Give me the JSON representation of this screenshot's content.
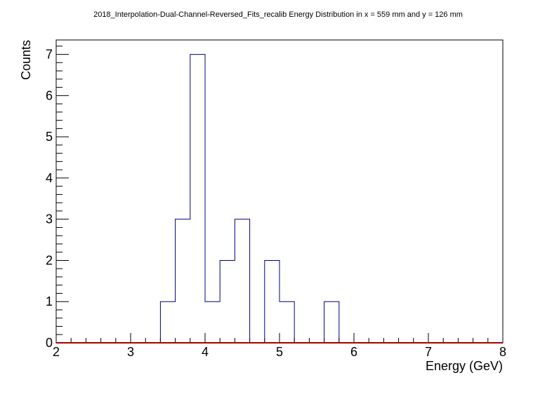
{
  "chart_data": {
    "type": "bar",
    "title": "2018_Interpolation-Dual-Channel-Reversed_Fits_recalib Energy Distribution in x = 559 mm and y = 126 mm",
    "xlabel": "Energy (GeV)",
    "ylabel": "Counts",
    "xlim": [
      2,
      8
    ],
    "ylim": [
      0,
      7.35
    ],
    "x_ticks": [
      "2",
      "3",
      "4",
      "5",
      "6",
      "7",
      "8"
    ],
    "y_ticks": [
      "0",
      "1",
      "2",
      "3",
      "4",
      "5",
      "6",
      "7"
    ],
    "bin_width": 0.2,
    "bin_edges_start": 2.0,
    "values": [
      0,
      0,
      0,
      0,
      0,
      0,
      0,
      1,
      3,
      7,
      1,
      2,
      3,
      0,
      2,
      1,
      0,
      0,
      1,
      0,
      0,
      0,
      0,
      0,
      0,
      0,
      0,
      0,
      0,
      0
    ],
    "grid": false,
    "legend": "none",
    "colors": {
      "histogram": "#000080",
      "baseline": "#aa0000"
    }
  }
}
